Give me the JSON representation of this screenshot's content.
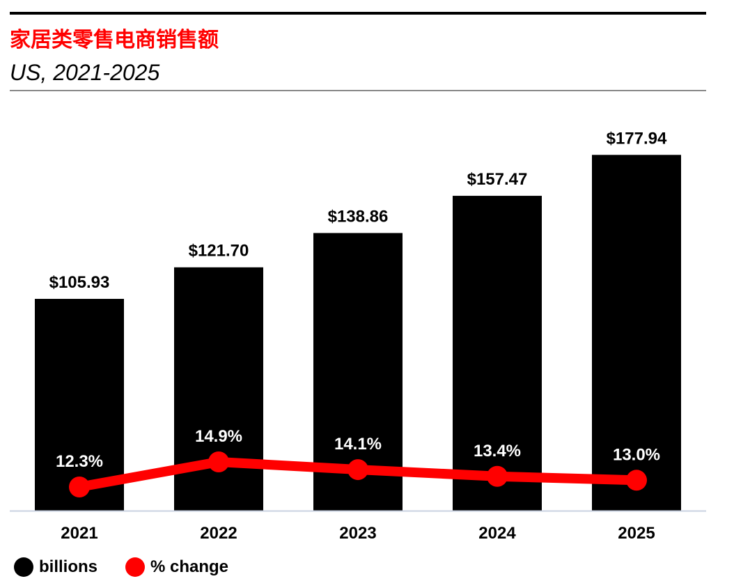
{
  "header": {
    "title": "家居类零售电商销售额",
    "subtitle": "US, 2021-2025"
  },
  "chart_data": {
    "type": "bar",
    "categories": [
      "2021",
      "2022",
      "2023",
      "2024",
      "2025"
    ],
    "series": [
      {
        "name": "billions",
        "type": "bar",
        "values": [
          105.93,
          121.7,
          138.86,
          157.47,
          177.94
        ],
        "labels": [
          "$105.93",
          "$121.70",
          "$138.86",
          "$157.47",
          "$177.94"
        ],
        "color": "#000000"
      },
      {
        "name": "% change",
        "type": "line",
        "values": [
          12.3,
          14.9,
          14.1,
          13.4,
          13.0
        ],
        "labels": [
          "12.3%",
          "14.9%",
          "14.1%",
          "13.4%",
          "13.0%"
        ],
        "color": "#ff0000"
      }
    ],
    "legend": "bottom-left",
    "grid": false
  }
}
